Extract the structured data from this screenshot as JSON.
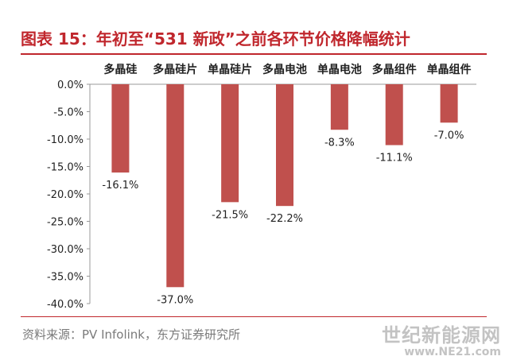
{
  "title": "图表 15：年初至“531 新政”之前各环节价格降幅统计",
  "source": "资料来源：PV Infolink，东方证券研究所",
  "watermark": {
    "cn": "世纪新能源网",
    "en": "www.NE21.com"
  },
  "colors": {
    "bar": "#c0504d",
    "title": "#c0272d",
    "axis": "#999999",
    "text": "#222222"
  },
  "chart_data": {
    "type": "bar",
    "categories": [
      "多晶硅",
      "多晶硅片",
      "单晶硅片",
      "多晶电池",
      "单晶电池",
      "多晶组件",
      "单晶组件"
    ],
    "values": [
      -16.1,
      -37.0,
      -21.5,
      -22.2,
      -8.3,
      -11.1,
      -7.0
    ],
    "data_labels": [
      "-16.1%",
      "-37.0%",
      "-21.5%",
      "-22.2%",
      "-8.3%",
      "-11.1%",
      "-7.0%"
    ],
    "y_ticks": [
      "0.0%",
      "-5.0%",
      "-10.0%",
      "-15.0%",
      "-20.0%",
      "-25.0%",
      "-30.0%",
      "-35.0%",
      "-40.0%"
    ],
    "y_tick_values": [
      0,
      -5,
      -10,
      -15,
      -20,
      -25,
      -30,
      -35,
      -40
    ],
    "ylim": [
      -40,
      0
    ],
    "category_position": "top",
    "grid": false,
    "legend": "none"
  }
}
